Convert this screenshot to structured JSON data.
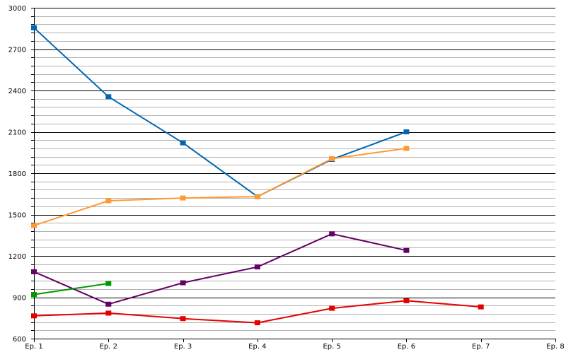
{
  "chart_data": {
    "type": "line",
    "title": "",
    "xlabel": "",
    "ylabel": "",
    "categories": [
      "Ep. 1",
      "Ep. 2",
      "Ep. 3",
      "Ep. 4",
      "Ep. 5",
      "Ep. 6",
      "Ep. 7",
      "Ep. 8"
    ],
    "ylim": [
      600,
      3000
    ],
    "yticks": [
      600,
      900,
      1200,
      1500,
      1800,
      2100,
      2400,
      2700,
      3000
    ],
    "grid": "horizontal",
    "legend": "none",
    "series": [
      {
        "color": "#0066b3",
        "values": [
          2855,
          2355,
          2020,
          1630,
          1900,
          2100,
          null,
          null
        ]
      },
      {
        "color": "#ff9933",
        "values": [
          1420,
          1600,
          1620,
          1630,
          1905,
          1980,
          null,
          null
        ]
      },
      {
        "color": "#660066",
        "values": [
          1085,
          850,
          1005,
          1120,
          1360,
          1240,
          null,
          null
        ]
      },
      {
        "color": "#009900",
        "values": [
          920,
          1000,
          null,
          null,
          null,
          null,
          null,
          null
        ]
      },
      {
        "color": "#e60000",
        "values": [
          765,
          785,
          745,
          715,
          820,
          875,
          830,
          null
        ]
      }
    ]
  }
}
